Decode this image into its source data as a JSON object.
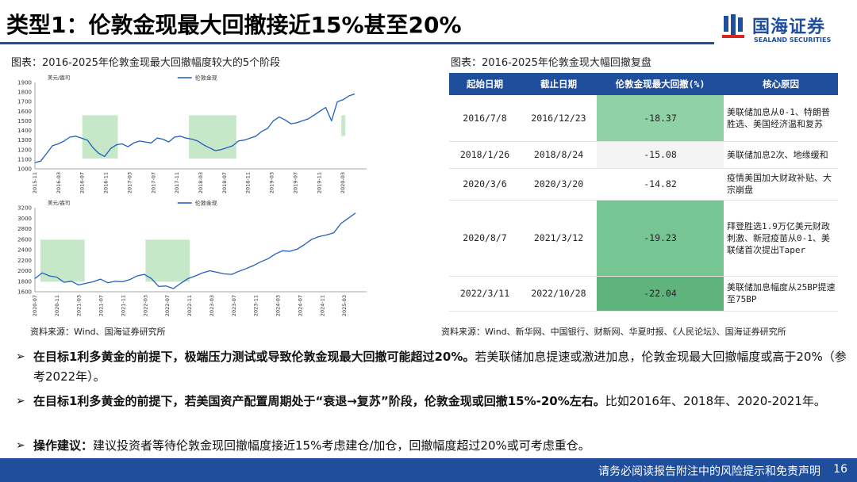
{
  "title": "类型1：伦敦金现最大回撤接近15%甚至20%",
  "logo": {
    "cn": "国海证券",
    "en": "SEALAND SECURITIES"
  },
  "left_caption": "图表：2016-2025年伦敦金现最大回撤幅度较大的5个阶段",
  "right_caption": "图表：2016-2025年伦敦金现大幅回撤复盘",
  "left_source": "资料来源：Wind、国海证券研究所",
  "right_source": "资料来源：Wind、新华网、中国银行、财新网、华夏时报、《人民论坛》、国海证券研究所",
  "chart_data": [
    {
      "type": "line",
      "title": "",
      "unit_label": "美元/盎司",
      "legend": "伦敦金现",
      "ylim": [
        1000,
        1900
      ],
      "yticks": [
        "1900",
        "1800",
        "1700",
        "1600",
        "1500",
        "1400",
        "1300",
        "1200",
        "1100",
        "1000"
      ],
      "xticks": [
        "2015-11",
        "2016-03",
        "2016-07",
        "2016-11",
        "2017-03",
        "2017-07",
        "2017-11",
        "2018-03",
        "2018-07",
        "2018-11",
        "2019-03",
        "2019-07",
        "2019-11",
        "2020-03"
      ],
      "x": [
        0,
        1,
        2,
        3,
        4,
        5,
        6,
        7,
        8,
        9,
        10,
        11,
        12,
        13,
        14,
        15,
        16,
        17,
        18,
        19,
        20,
        21,
        22,
        23,
        24,
        25,
        26,
        27,
        28,
        29,
        30,
        31,
        32,
        33,
        34,
        35,
        36,
        37,
        38,
        39,
        40,
        41,
        42,
        43,
        44,
        45,
        46,
        47,
        48,
        49,
        50,
        51,
        52,
        53,
        54,
        55
      ],
      "values": [
        1065,
        1080,
        1160,
        1240,
        1260,
        1290,
        1330,
        1340,
        1320,
        1300,
        1220,
        1160,
        1130,
        1210,
        1250,
        1260,
        1230,
        1270,
        1290,
        1280,
        1270,
        1320,
        1310,
        1280,
        1330,
        1340,
        1320,
        1310,
        1290,
        1250,
        1220,
        1190,
        1200,
        1220,
        1240,
        1290,
        1300,
        1320,
        1340,
        1390,
        1420,
        1500,
        1540,
        1510,
        1470,
        1480,
        1500,
        1520,
        1560,
        1600,
        1640,
        1500,
        1700,
        1720,
        1760,
        1780
      ],
      "x_start": "2015-11",
      "highlights": [
        {
          "from": "2016-07",
          "to": "2016-12"
        },
        {
          "from": "2018-01",
          "to": "2018-08"
        },
        {
          "from": "2020-03",
          "to": "2020-03"
        }
      ]
    },
    {
      "type": "line",
      "title": "",
      "unit_label": "美元/盎司",
      "legend": "伦敦金现",
      "ylim": [
        1600,
        3200
      ],
      "yticks": [
        "3200",
        "3000",
        "2800",
        "2600",
        "2400",
        "2200",
        "2000",
        "1800",
        "1600"
      ],
      "xticks": [
        "2020-07",
        "2020-11",
        "2021-03",
        "2021-07",
        "2021-11",
        "2022-03",
        "2022-07",
        "2022-11",
        "2023-03",
        "2023-07",
        "2023-11",
        "2024-03",
        "2024-07",
        "2024-11",
        "2025-03"
      ],
      "values": [
        1850,
        1960,
        1900,
        1880,
        1780,
        1800,
        1730,
        1760,
        1790,
        1840,
        1770,
        1800,
        1790,
        1830,
        1900,
        1930,
        1850,
        1700,
        1710,
        1660,
        1760,
        1850,
        1900,
        1960,
        2000,
        1970,
        1940,
        1930,
        1990,
        2040,
        2100,
        2170,
        2230,
        2320,
        2380,
        2370,
        2410,
        2500,
        2600,
        2650,
        2680,
        2720,
        2900,
        3000,
        3100
      ],
      "highlights": [
        {
          "from": "2020-08",
          "to": "2021-03"
        },
        {
          "from": "2022-03",
          "to": "2022-10"
        }
      ]
    }
  ],
  "table": {
    "headers": [
      "起始日期",
      "截止日期",
      "伦敦金现最大回撤(%)",
      "核心原因"
    ],
    "rows": [
      {
        "start": "2016/7/8",
        "end": "2016/12/23",
        "dd": "-18.37",
        "reason": "美联储加息从0-1、特朗普胜选、美国经济温和复苏",
        "color": "#8fd2a8"
      },
      {
        "start": "2018/1/26",
        "end": "2018/8/24",
        "dd": "-15.08",
        "reason": "美联储加息2次、地缘缓和",
        "color": "#f4f4f4"
      },
      {
        "start": "2020/3/6",
        "end": "2020/3/20",
        "dd": "-14.82",
        "reason": "疫情美国加大财政补贴、大宗崩盘",
        "color": "#ffffff"
      },
      {
        "start": "2020/8/7",
        "end": "2021/3/12",
        "dd": "-19.23",
        "reason": "拜登胜选1.9万亿美元财政刺激、新冠疫苗从0-1、美联储首次提出Taper",
        "color": "#78c594"
      },
      {
        "start": "2022/3/11",
        "end": "2022/10/28",
        "dd": "-22.04",
        "reason": "美联储加息幅度从25BP提速至75BP",
        "color": "#5fb37c"
      }
    ]
  },
  "bullets": [
    {
      "bold": "在目标1利多黄金的前提下，极端压力测试或导致伦敦金现最大回撤可能超过20%。",
      "text": "若美联储加息提速或激进加息，伦敦金现最大回撤幅度或高于20%（参考2022年）。"
    },
    {
      "bold": "在目标1利多黄金的前提下，若美国资产配置周期处于“衰退→复苏”阶段，伦敦金现或回撤15%-20%左右。",
      "text": "比如2016年、2018年、2020-2021年。"
    },
    {
      "bold": "操作建议：",
      "text": "建议投资者等待伦敦金现回撤幅度接近15%考虑建仓/加仓，回撤幅度超过20%或可考虑重仓。"
    }
  ],
  "footer": {
    "text": "请务必阅读报告附注中的风险提示和免责声明",
    "page": "16"
  },
  "colors": {
    "brand": "#1f4e9d",
    "line": "#1f5fbf",
    "highlight": "#c6e8c9"
  }
}
